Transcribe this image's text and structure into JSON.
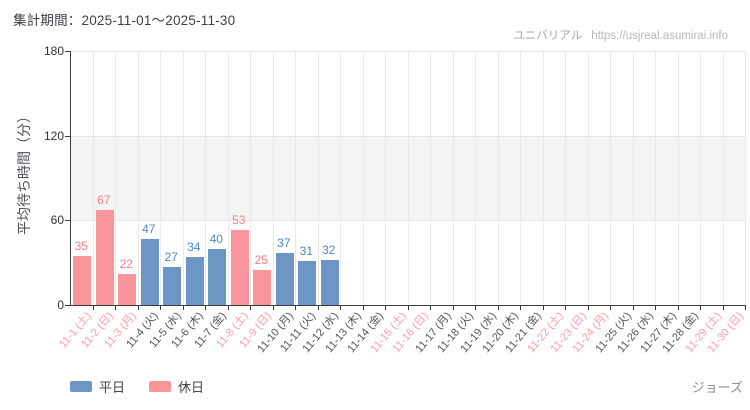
{
  "header": {
    "period_label": "集計期間：2025-11-01～2025-11-30",
    "site_name": "ユニバリアル",
    "site_url": "https://usjreal.asumirai.info"
  },
  "footer": {
    "attraction_name": "ジョーズ"
  },
  "legend": [
    {
      "label": "平日",
      "type": "weekday"
    },
    {
      "label": "休日",
      "type": "holiday"
    }
  ],
  "colors": {
    "weekday_bar": "#6d96c4",
    "holiday_bar": "#fa949b",
    "weekday_value_label": "#4d87c2",
    "holiday_value_label": "#f87f87",
    "weekday_axis_label": "#555555",
    "holiday_axis_label": "#f99da3",
    "axis_line": "#3c3c3c",
    "grid_line": "#e9e9e9",
    "shaded_band_fill": "#f4f4f4"
  },
  "chart_data": {
    "type": "bar",
    "title": "",
    "xlabel": "",
    "ylabel": "平均待ち時間（分）",
    "ylim": [
      0,
      180
    ],
    "yticks": [
      0,
      60,
      120,
      180
    ],
    "shaded_band": [
      60,
      120
    ],
    "grid": "vertical-per-day",
    "legend_position": "bottom-left",
    "categories": [
      "11-1 (土)",
      "11-2 (日)",
      "11-3 (月)",
      "11-4 (火)",
      "11-5 (水)",
      "11-6 (木)",
      "11-7 (金)",
      "11-8 (土)",
      "11-9 (日)",
      "11-10 (月)",
      "11-11 (火)",
      "11-12 (水)",
      "11-13 (木)",
      "11-14 (金)",
      "11-15 (土)",
      "11-16 (日)",
      "11-17 (月)",
      "11-18 (火)",
      "11-19 (水)",
      "11-20 (木)",
      "11-21 (金)",
      "11-22 (土)",
      "11-23 (日)",
      "11-24 (月)",
      "11-25 (火)",
      "11-26 (水)",
      "11-27 (木)",
      "11-28 (金)",
      "11-29 (土)",
      "11-30 (日)"
    ],
    "day_type": [
      "holiday",
      "holiday",
      "holiday",
      "weekday",
      "weekday",
      "weekday",
      "weekday",
      "holiday",
      "holiday",
      "weekday",
      "weekday",
      "weekday",
      "weekday",
      "weekday",
      "holiday",
      "holiday",
      "weekday",
      "weekday",
      "weekday",
      "weekday",
      "weekday",
      "holiday",
      "holiday",
      "holiday",
      "weekday",
      "weekday",
      "weekday",
      "weekday",
      "holiday",
      "holiday"
    ],
    "values": [
      35,
      67,
      22,
      47,
      27,
      34,
      40,
      53,
      25,
      37,
      31,
      32,
      null,
      null,
      null,
      null,
      null,
      null,
      null,
      null,
      null,
      null,
      null,
      null,
      null,
      null,
      null,
      null,
      null,
      null
    ],
    "series": [
      {
        "name": "平日",
        "values": [
          47,
          27,
          34,
          40,
          37,
          31,
          32
        ]
      },
      {
        "name": "休日",
        "values": [
          35,
          67,
          22,
          53,
          25
        ]
      }
    ]
  }
}
